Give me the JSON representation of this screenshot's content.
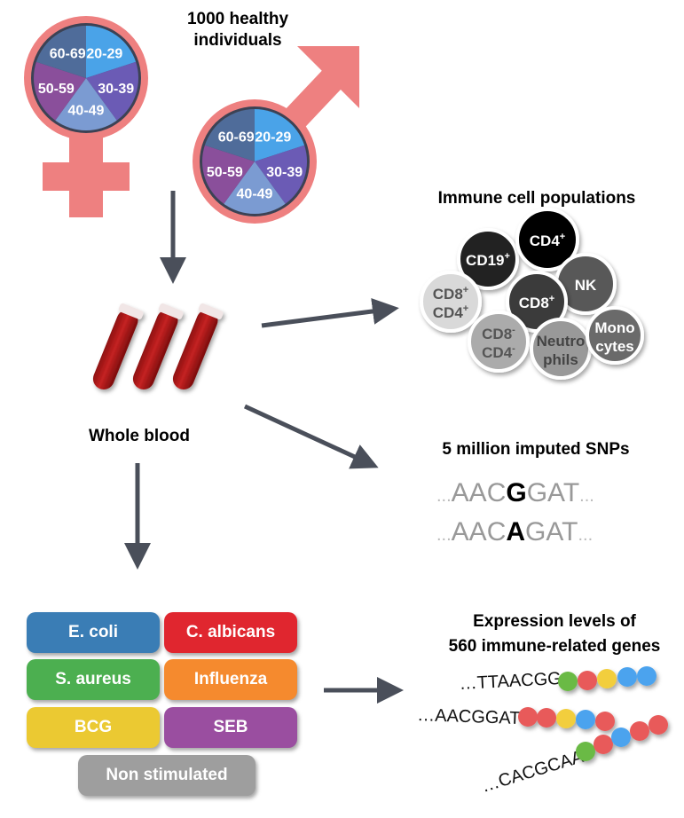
{
  "cohort": {
    "line1": "1000 healthy",
    "line2": "individuals"
  },
  "age_groups": [
    "20-29",
    "30-39",
    "40-49",
    "50-59",
    "60-69"
  ],
  "age_colors": [
    "#4AA3E8",
    "#6B5BB5",
    "#7B9BD2",
    "#8A4F9B",
    "#4F6C9A"
  ],
  "symbol_color": "#EE8080",
  "whole_blood": "Whole blood",
  "immune": {
    "title": "Immune cell populations",
    "cells": [
      {
        "l1": "CD19",
        "sup1": "+",
        "color": "#232323",
        "text": "#fff"
      },
      {
        "l1": "CD4",
        "sup1": "+",
        "color": "#000000",
        "text": "#fff"
      },
      {
        "l1": "NK",
        "color": "#585858",
        "text": "#fff"
      },
      {
        "l1": "CD8",
        "sup1": "+",
        "l2": "CD4",
        "sup2": "+",
        "color": "#d9d9d9",
        "text": "#555"
      },
      {
        "l1": "CD8",
        "sup1": "+",
        "color": "#3b3b3b",
        "text": "#fff"
      },
      {
        "l1": "CD8",
        "sup1": "-",
        "l2": "CD4",
        "sup2": "-",
        "color": "#ababab",
        "text": "#555"
      },
      {
        "l1": "Neutro",
        "l2": "phils",
        "color": "#999999",
        "text": "#444"
      },
      {
        "l1": "Mono",
        "l2": "cytes",
        "color": "#6a6a6a",
        "text": "#fff"
      }
    ]
  },
  "snps": {
    "title": "5 million imputed SNPs",
    "seq1": {
      "pre": "AAC",
      "alt": "G",
      "post": "GAT"
    },
    "seq2": {
      "pre": "AAC",
      "alt": "A",
      "post": "GAT"
    },
    "ellipsis": "..."
  },
  "stimuli": {
    "ecoli": {
      "label": "E. coli",
      "color": "#3A7DB5"
    },
    "calbicans": {
      "label": "C. albicans",
      "color": "#E0262F"
    },
    "saureus": {
      "label": "S. aureus",
      "color": "#4CAF50"
    },
    "influenza": {
      "label": "Influenza",
      "color": "#F58A2E"
    },
    "bcg": {
      "label": "BCG",
      "color": "#EBC932"
    },
    "seb": {
      "label": "SEB",
      "color": "#9A4EA0"
    },
    "nonstim": {
      "label": "Non stimulated",
      "color": "#9E9E9E"
    }
  },
  "expression": {
    "line1": "Expression levels of",
    "line2": "560 immune-related genes",
    "seqs": [
      "…TTAACGG",
      "…AACGGAT",
      "…CACGCAA"
    ]
  }
}
